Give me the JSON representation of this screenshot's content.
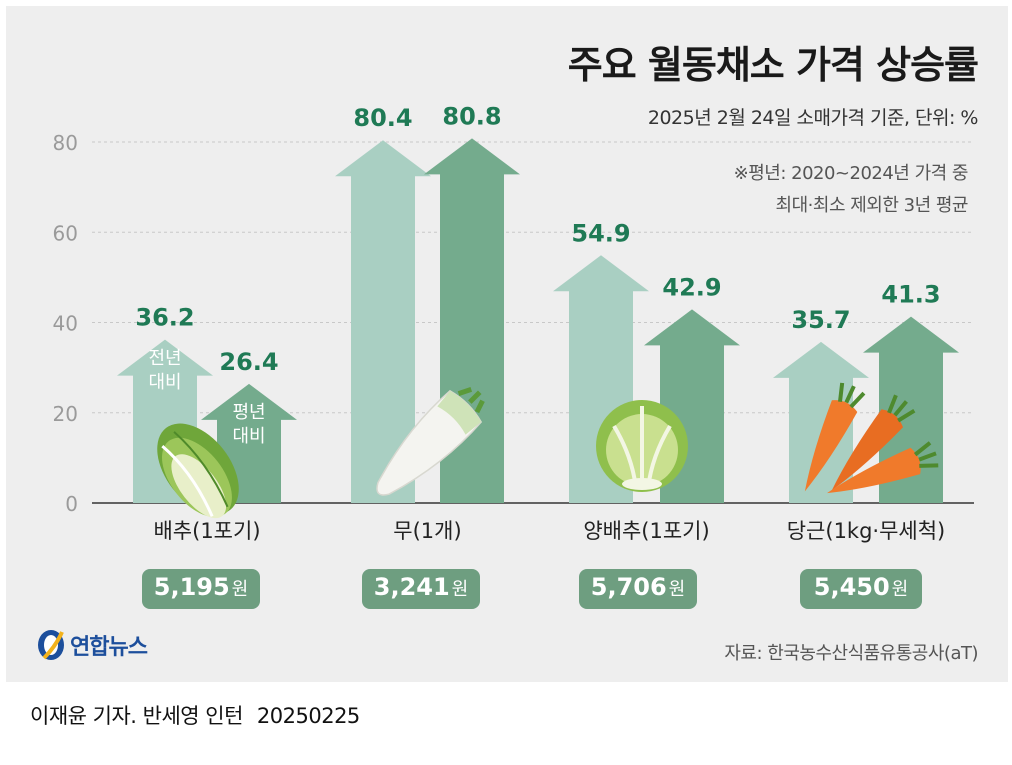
{
  "title": "주요 월동채소 가격 상승률",
  "subtitle": "2025년 2월 24일 소매가격 기준, 단위: %",
  "note": [
    "※평년: 2020~2024년 가격 중",
    "최대·최소 제외한 3년 평균"
  ],
  "source": "자료: 한국농수산식품유통공사(aT)",
  "logo": "연합뉴스",
  "byline": "이재윤 기자. 반세영 인턴",
  "date": "20250225",
  "colors": {
    "prev_year": "#a9cfc2",
    "normal_year": "#74ab8d",
    "value_text": "#1f7a55",
    "pill": "#6e9e80",
    "background": "#eeeeee"
  },
  "chart_data": {
    "type": "bar",
    "title": "주요 월동채소 가격 상승률",
    "categories": [
      "배추(1포기)",
      "무(1개)",
      "양배추(1포기)",
      "당근(1kg·무세척)"
    ],
    "series": [
      {
        "name": "전년 대비",
        "values": [
          36.2,
          80.4,
          54.9,
          35.7
        ]
      },
      {
        "name": "평년 대비",
        "values": [
          26.4,
          80.8,
          42.9,
          41.3
        ]
      }
    ],
    "value_labels": {
      "prev": [
        "36.2",
        "80.4",
        "54.9",
        "35.7"
      ],
      "normal": [
        "26.4",
        "80.8",
        "42.9",
        "41.3"
      ]
    },
    "in_bar_labels": {
      "prev": [
        "전년",
        "대비"
      ],
      "normal": [
        "평년",
        "대비"
      ]
    },
    "yticks": [
      0,
      20,
      40,
      60,
      80
    ],
    "ylim": [
      0,
      80
    ],
    "grid": true,
    "prices": [
      {
        "num": "5,195",
        "unit": "원"
      },
      {
        "num": "3,241",
        "unit": "원"
      },
      {
        "num": "5,706",
        "unit": "원"
      },
      {
        "num": "5,450",
        "unit": "원"
      }
    ],
    "icons": [
      "napa-cabbage-icon",
      "radish-icon",
      "cabbage-icon",
      "carrot-icon"
    ]
  }
}
